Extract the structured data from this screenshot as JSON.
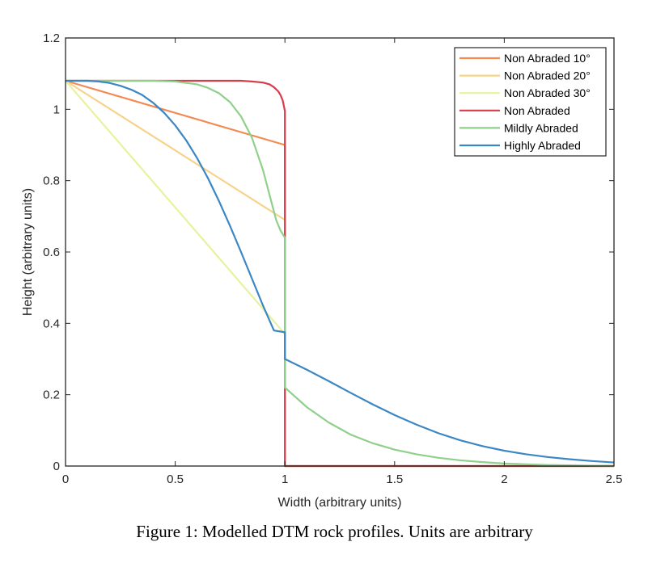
{
  "caption": "Figure 1:  Modelled DTM rock profiles. Units are arbitrary",
  "chart_data": {
    "type": "line",
    "xlabel": "Width (arbitrary units)",
    "ylabel": "Height (arbitrary units)",
    "xlim": [
      0,
      2.5
    ],
    "ylim": [
      0,
      1.2
    ],
    "xticks": [
      0,
      0.5,
      1,
      1.5,
      2,
      2.5
    ],
    "xtick_labels": [
      "0",
      "0.5",
      "1",
      "1.5",
      "2",
      "2.5"
    ],
    "yticks": [
      0,
      0.2,
      0.4,
      0.6,
      0.8,
      1,
      1.2
    ],
    "ytick_labels": [
      "0",
      "0.2",
      "0.4",
      "0.6",
      "0.8",
      "1",
      "1.2"
    ],
    "grid": false,
    "legend_position": "top-right",
    "series": [
      {
        "name": "Non Abraded 10°",
        "color": "#f28a52",
        "x": [
          0,
          1,
          1,
          2.5
        ],
        "y": [
          1.08,
          0.9,
          0,
          0
        ]
      },
      {
        "name": "Non Abraded 20°",
        "color": "#f7d38a",
        "x": [
          0,
          1,
          1,
          2.5
        ],
        "y": [
          1.08,
          0.69,
          0,
          0
        ]
      },
      {
        "name": "Non Abraded 30°",
        "color": "#e8f29e",
        "x": [
          0,
          1,
          1,
          2.5
        ],
        "y": [
          1.08,
          0.37,
          0,
          0
        ]
      },
      {
        "name": "Non Abraded",
        "color": "#d83c4a",
        "x": [
          0,
          0.5,
          0.7,
          0.8,
          0.85,
          0.9,
          0.93,
          0.95,
          0.97,
          0.98,
          0.99,
          1.0,
          1.0,
          1.0,
          2.5
        ],
        "y": [
          1.08,
          1.08,
          1.08,
          1.08,
          1.078,
          1.075,
          1.07,
          1.062,
          1.05,
          1.04,
          1.025,
          0.995,
          0.63,
          0,
          0
        ]
      },
      {
        "name": "Mildly Abraded",
        "color": "#8fd08a",
        "x": [
          0,
          0.2,
          0.4,
          0.5,
          0.6,
          0.65,
          0.7,
          0.75,
          0.8,
          0.85,
          0.9,
          0.93,
          0.96,
          0.98,
          1.0,
          1.0,
          1.1,
          1.2,
          1.3,
          1.4,
          1.5,
          1.6,
          1.7,
          1.8,
          1.9,
          2.0,
          2.1,
          2.2,
          2.3,
          2.4,
          2.5
        ],
        "y": [
          1.08,
          1.08,
          1.08,
          1.078,
          1.07,
          1.06,
          1.045,
          1.02,
          0.98,
          0.92,
          0.83,
          0.76,
          0.69,
          0.66,
          0.64,
          0.22,
          0.165,
          0.122,
          0.088,
          0.064,
          0.046,
          0.033,
          0.023,
          0.016,
          0.011,
          0.007,
          0.005,
          0.003,
          0.002,
          0.001,
          0.0005
        ]
      },
      {
        "name": "Highly Abraded",
        "color": "#3b87c4",
        "x": [
          0,
          0.05,
          0.1,
          0.15,
          0.2,
          0.25,
          0.3,
          0.35,
          0.4,
          0.45,
          0.5,
          0.55,
          0.6,
          0.65,
          0.7,
          0.75,
          0.8,
          0.85,
          0.9,
          0.95,
          1.0,
          1.0,
          1.1,
          1.2,
          1.3,
          1.4,
          1.5,
          1.6,
          1.7,
          1.8,
          1.9,
          2.0,
          2.1,
          2.2,
          2.3,
          2.4,
          2.5
        ],
        "y": [
          1.08,
          1.08,
          1.08,
          1.078,
          1.074,
          1.066,
          1.055,
          1.04,
          1.018,
          0.99,
          0.955,
          0.913,
          0.863,
          0.806,
          0.742,
          0.673,
          0.6,
          0.525,
          0.45,
          0.38,
          0.375,
          0.3,
          0.27,
          0.238,
          0.205,
          0.173,
          0.143,
          0.116,
          0.092,
          0.072,
          0.056,
          0.043,
          0.033,
          0.025,
          0.019,
          0.014,
          0.01
        ]
      }
    ]
  }
}
